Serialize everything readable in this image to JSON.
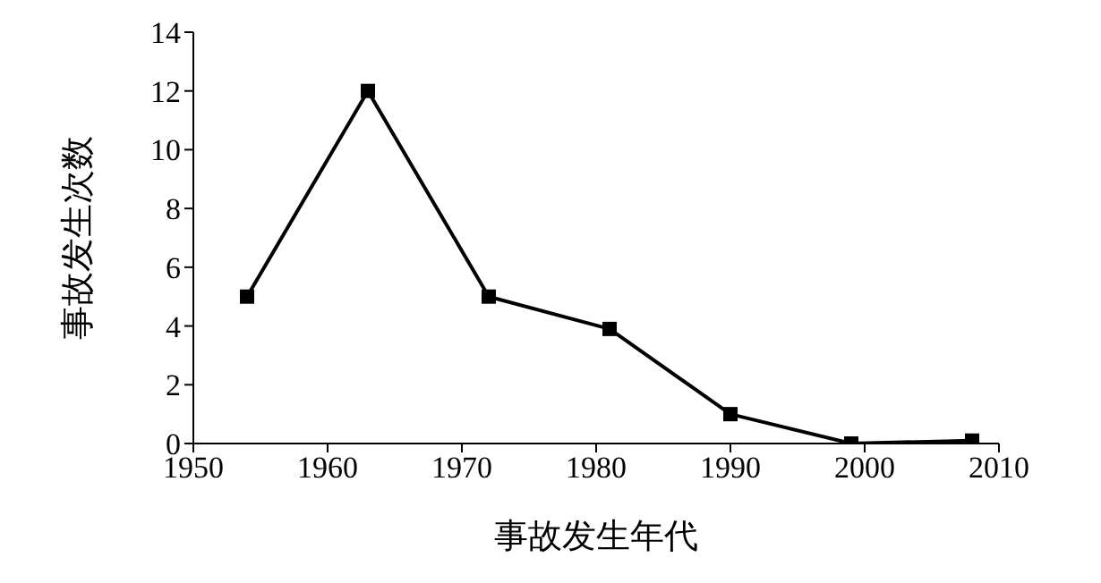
{
  "chart_data": {
    "type": "line",
    "xlabel": "事故发生年代",
    "ylabel": "事故发生次数",
    "x": [
      1954,
      1963,
      1972,
      1981,
      1990,
      1999,
      2008
    ],
    "series": [
      {
        "color": "#000000",
        "values": [
          5,
          12,
          5,
          3.9,
          1,
          0,
          0.1
        ]
      }
    ],
    "xlim": [
      1950,
      2010
    ],
    "xticks": [
      1950,
      1960,
      1970,
      1980,
      1990,
      2000,
      2010
    ],
    "ylim": [
      0,
      14
    ],
    "yticks": [
      0,
      2,
      4,
      6,
      8,
      10,
      12,
      14
    ],
    "grid": false,
    "legend": false,
    "marker": "square",
    "line_style": "solid"
  }
}
